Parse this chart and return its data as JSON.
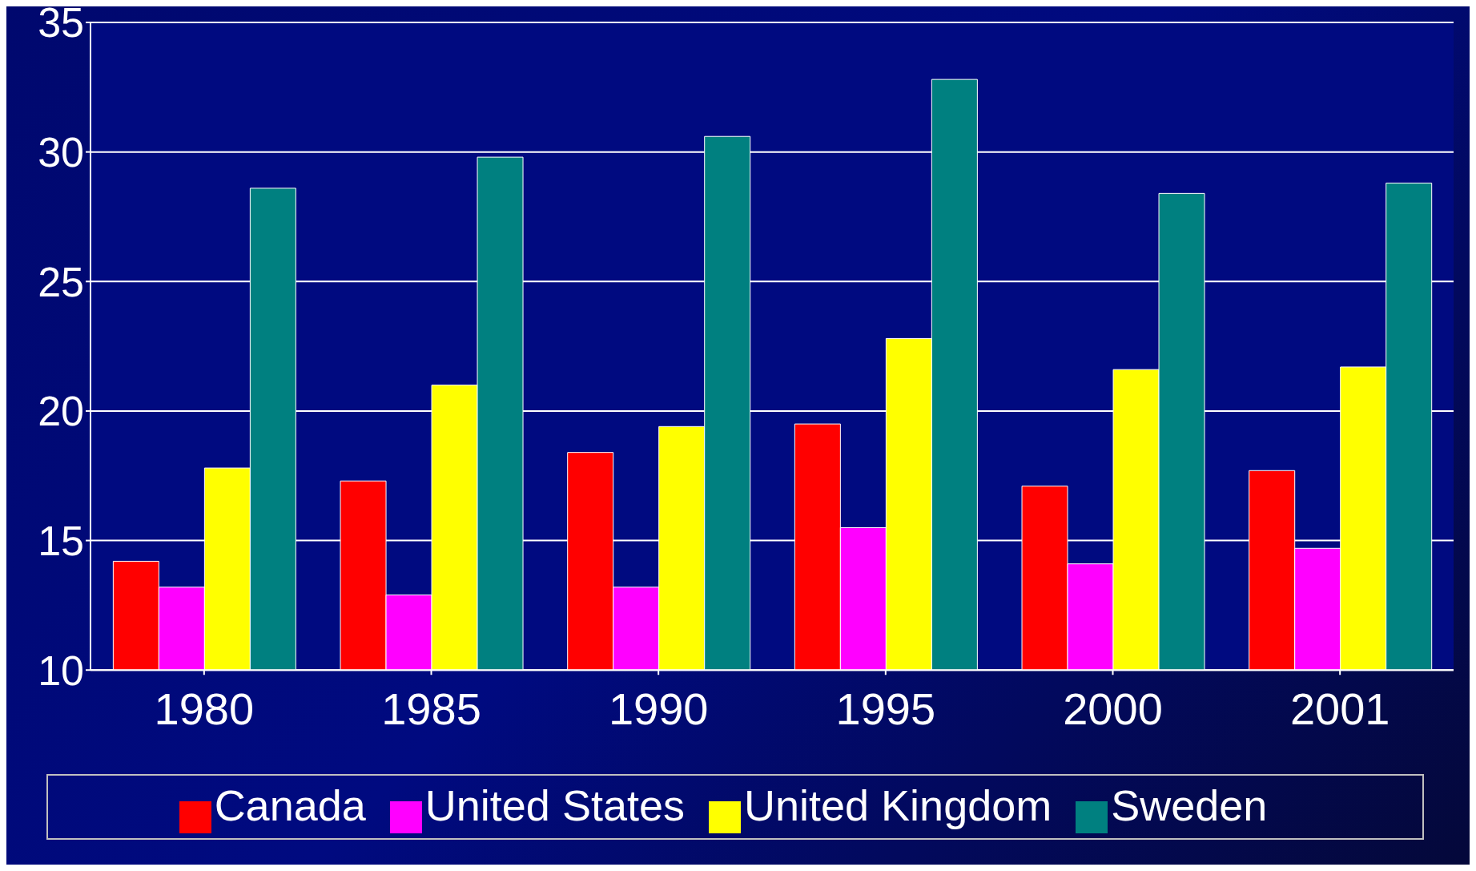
{
  "chart_data": {
    "type": "bar",
    "categories": [
      "1980",
      "1985",
      "1990",
      "1995",
      "2000",
      "2001"
    ],
    "series": [
      {
        "name": "Canada",
        "color": "#ff0000",
        "values": [
          14.2,
          17.3,
          18.4,
          19.5,
          17.1,
          17.7
        ]
      },
      {
        "name": "United States",
        "color": "#ff00ff",
        "values": [
          13.2,
          12.9,
          13.2,
          15.5,
          14.1,
          14.7
        ]
      },
      {
        "name": "United Kingdom",
        "color": "#ffff00",
        "values": [
          17.8,
          21.0,
          19.4,
          22.8,
          21.6,
          21.7
        ]
      },
      {
        "name": "Sweden",
        "color": "#008080",
        "values": [
          28.6,
          29.8,
          30.6,
          32.8,
          28.4,
          28.8
        ]
      }
    ],
    "ylim": [
      10,
      35
    ],
    "yticks": [
      10,
      15,
      20,
      25,
      30,
      35
    ],
    "grid": "y",
    "legend": "bottom"
  }
}
